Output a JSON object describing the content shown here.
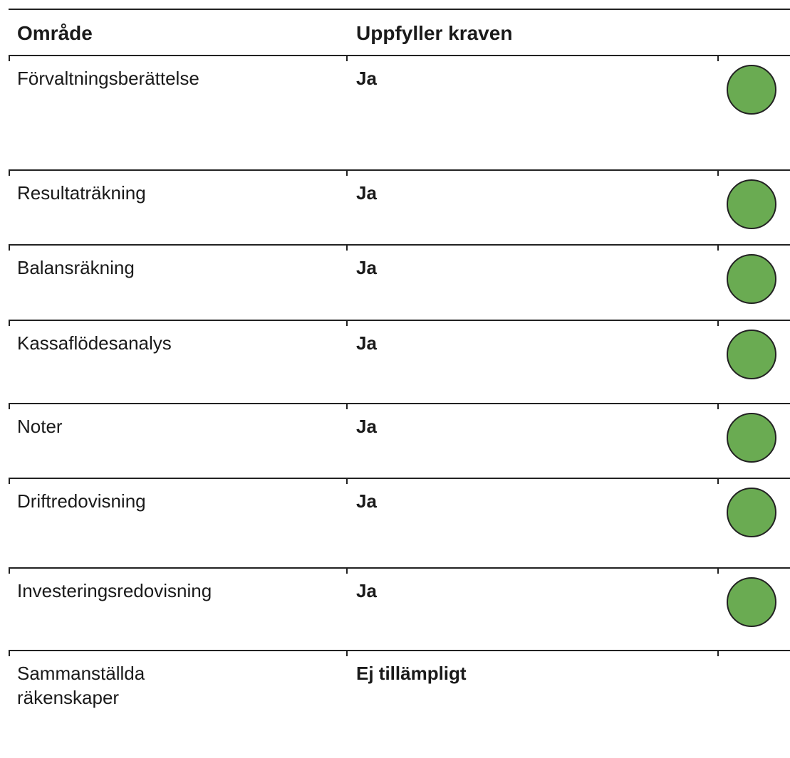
{
  "table": {
    "header": [
      "Område",
      "Uppfyller kraven"
    ],
    "rows": [
      {
        "area": "Förvaltningsberättelse",
        "status": "Ja",
        "indicator": "#6aab52"
      },
      {
        "area": "Resultaträkning",
        "status": "Ja",
        "indicator": "#6aab52"
      },
      {
        "area": "Balansräkning",
        "status": "Ja",
        "indicator": "#6aab52"
      },
      {
        "area": "Kassaflödesanalys",
        "status": "Ja",
        "indicator": "#6aab52"
      },
      {
        "area": "Noter",
        "status": "Ja",
        "indicator": "#6aab52"
      },
      {
        "area": "Driftredovisning",
        "status": "Ja",
        "indicator": "#6aab52"
      },
      {
        "area": "Investeringsredovisning",
        "status": "Ja",
        "indicator": "#6aab52"
      },
      {
        "area": "Sammanställda\nräkenskaper",
        "status": "Ej tillämpligt",
        "indicator": null
      }
    ]
  }
}
